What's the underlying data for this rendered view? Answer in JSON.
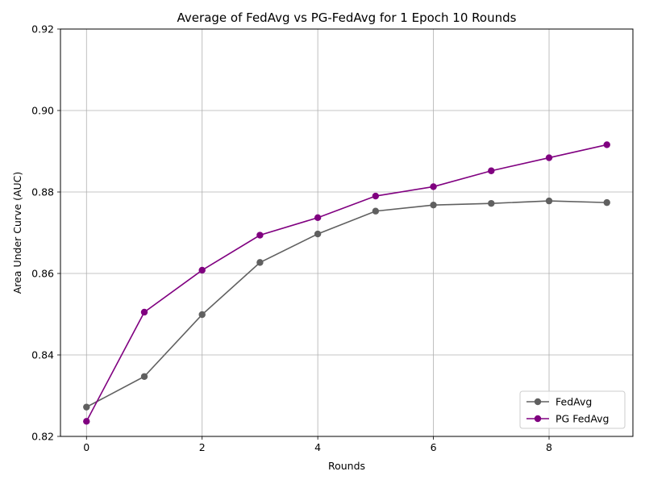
{
  "chart_data": {
    "type": "line",
    "title": "Average of FedAvg vs PG-FedAvg for 1 Epoch 10 Rounds",
    "xlabel": "Rounds",
    "ylabel": "Area Under Curve (AUC)",
    "x": [
      0,
      1,
      2,
      3,
      4,
      5,
      6,
      7,
      8,
      9
    ],
    "xlim": [
      -0.45,
      9.45
    ],
    "ylim": [
      0.82,
      0.92
    ],
    "xticks": [
      0,
      2,
      4,
      6,
      8
    ],
    "xtick_labels": [
      "0",
      "2",
      "4",
      "6",
      "8"
    ],
    "yticks": [
      0.82,
      0.84,
      0.86,
      0.88,
      0.9,
      0.92
    ],
    "ytick_labels": [
      "0.82",
      "0.84",
      "0.86",
      "0.88",
      "0.90",
      "0.92"
    ],
    "grid": true,
    "legend_position": "lower-right",
    "series": [
      {
        "name": "FedAvg",
        "color": "#606060",
        "marker": "circle",
        "values": [
          0.8272,
          0.8347,
          0.8499,
          0.8627,
          0.8697,
          0.8753,
          0.8768,
          0.8772,
          0.8778,
          0.8774
        ]
      },
      {
        "name": "PG FedAvg",
        "color": "#800080",
        "marker": "circle",
        "values": [
          0.8237,
          0.8505,
          0.8608,
          0.8694,
          0.8737,
          0.879,
          0.8813,
          0.8852,
          0.8884,
          0.8916
        ]
      }
    ]
  }
}
